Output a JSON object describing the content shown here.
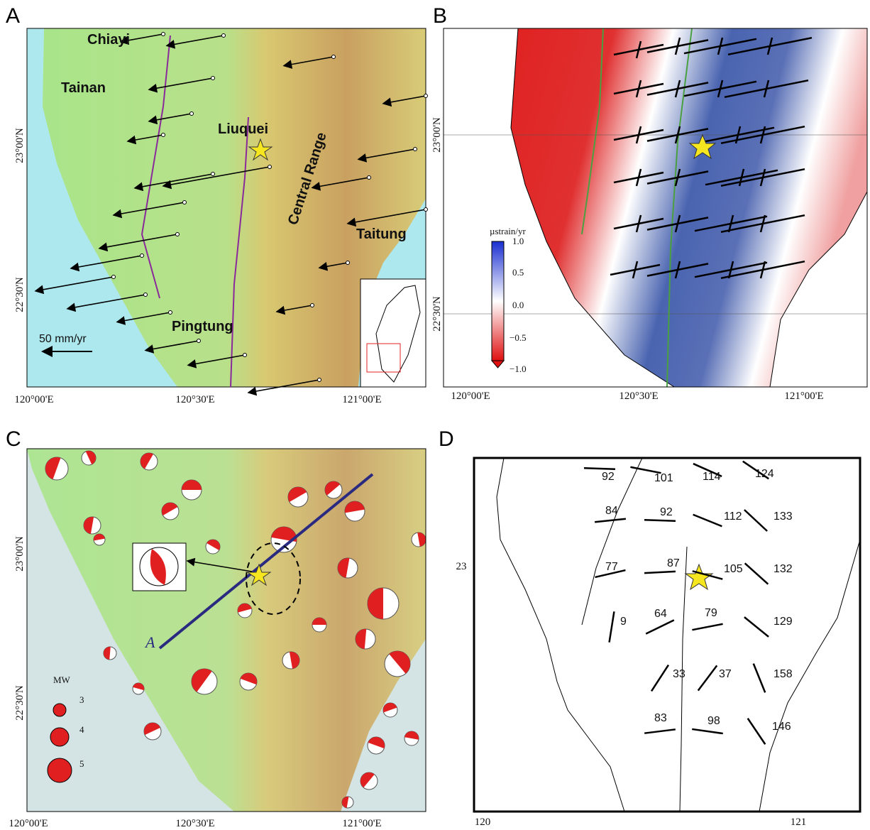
{
  "panels": [
    {
      "label": "A",
      "places": [
        "Chiayi",
        "Tainan",
        "Liuquei",
        "Central Range",
        "Taitung",
        "Pingtung"
      ],
      "scale": "50 mm/yr",
      "x_labels": [
        "120°00'E",
        "120°30'E",
        "121°00'E"
      ],
      "y_labels": [
        "23°00'N",
        "22°30'N"
      ]
    },
    {
      "label": "B",
      "colorbar_title": "µstrain/yr",
      "colorbar_labels": [
        "1.0",
        "0.5",
        "0.0",
        "−0.5",
        "−1.0"
      ],
      "x_labels": [
        "120°00'E",
        "120°30'E",
        "121°00'E"
      ],
      "y_labels": [
        "23°00'N",
        "22°30'N"
      ]
    },
    {
      "label": "C",
      "profile_start": "A",
      "magnitude_title": "MW",
      "magnitudes": [
        "3",
        "4",
        "5"
      ],
      "x_labels": [
        "120°00'E",
        "120°30'E",
        "121°00'E"
      ],
      "y_labels": [
        "23°00'N",
        "22°30'N"
      ]
    },
    {
      "label": "D",
      "azimuths": [
        92,
        101,
        114,
        124,
        84,
        92,
        112,
        133,
        77,
        87,
        105,
        132,
        9,
        64,
        79,
        129,
        33,
        37,
        158,
        83,
        98,
        146
      ],
      "x_labels": [
        "120",
        "121"
      ],
      "y_labels": [
        "23"
      ]
    }
  ]
}
